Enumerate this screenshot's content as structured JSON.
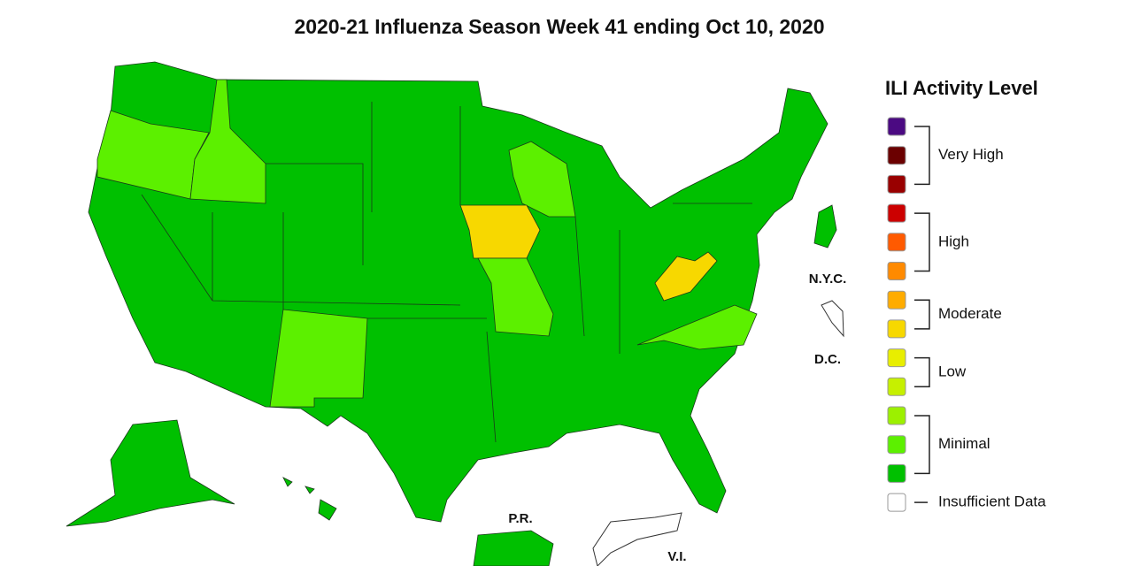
{
  "title": "2020-21 Influenza Season Week 41 ending Oct 10, 2020",
  "map_labels": {
    "nyc": "N.Y.C.",
    "dc": "D.C.",
    "pr": "P.R.",
    "vi": "V.I."
  },
  "legend": {
    "title": "ILI Activity Level",
    "groups": [
      {
        "label": "Very High",
        "colors": [
          "#4b0a82",
          "#6b0000",
          "#990000"
        ]
      },
      {
        "label": "High",
        "colors": [
          "#cc0000",
          "#ff5a00",
          "#ff8a00"
        ]
      },
      {
        "label": "Moderate",
        "colors": [
          "#ffac00",
          "#f7d800"
        ]
      },
      {
        "label": "Low",
        "colors": [
          "#e8ee00",
          "#c6f000"
        ]
      },
      {
        "label": "Minimal",
        "colors": [
          "#9cf000",
          "#5cf000",
          "#00c000"
        ]
      }
    ],
    "insufficient": {
      "label": "Insufficient Data",
      "color": "#ffffff"
    }
  }
}
